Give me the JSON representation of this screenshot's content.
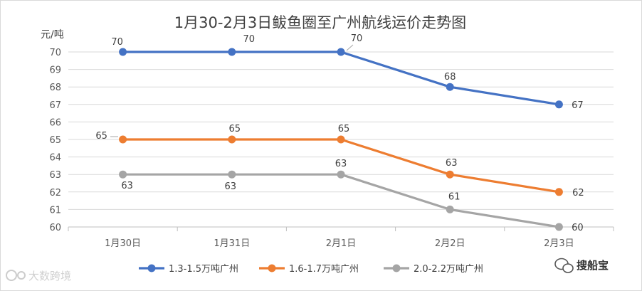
{
  "chart_data": {
    "type": "line",
    "title": "1月30-2月3日鲅鱼圈至广州航线运价走势图",
    "ylabel": "元/吨",
    "xlabel": "",
    "categories": [
      "1月30日",
      "1月31日",
      "2月1日",
      "2月2日",
      "2月3日"
    ],
    "ylim": [
      60,
      70
    ],
    "yticks": [
      60,
      61,
      62,
      63,
      64,
      65,
      66,
      67,
      68,
      69,
      70
    ],
    "grid": true,
    "legend_position": "bottom",
    "series": [
      {
        "name": "1.3-1.5万吨广州",
        "color": "#4472C4",
        "values": [
          70,
          70,
          70,
          68,
          67
        ],
        "labels": [
          "70",
          "70",
          "70",
          "68",
          "67"
        ]
      },
      {
        "name": "1.6-1.7万吨广州",
        "color": "#ED7D31",
        "values": [
          65,
          65,
          65,
          63,
          62
        ],
        "labels": [
          "65",
          "65",
          "65",
          "63",
          "62"
        ]
      },
      {
        "name": "2.0-2.2万吨广州",
        "color": "#A5A5A5",
        "values": [
          63,
          63,
          63,
          61,
          60
        ],
        "labels": [
          "63",
          "63",
          "63",
          "61",
          "60"
        ]
      }
    ]
  },
  "watermarks": {
    "left": "大数跨境",
    "right": "搜船宝"
  }
}
